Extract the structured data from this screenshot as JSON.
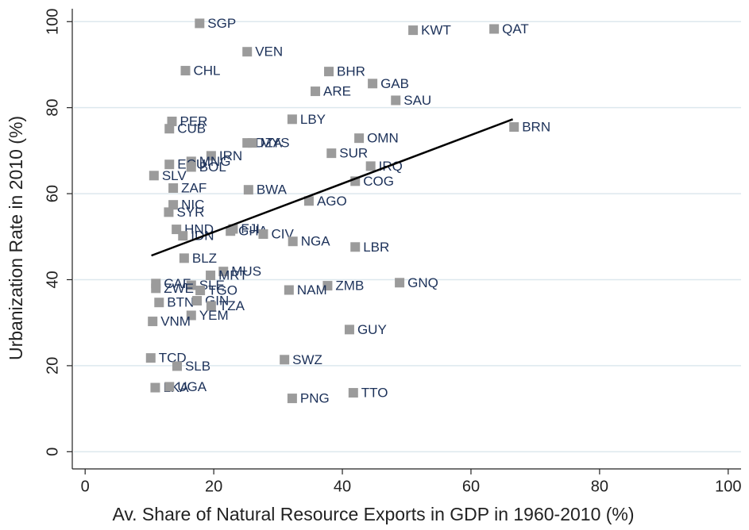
{
  "chart_data": {
    "type": "scatter",
    "x_label": "Av. Share of Natural Resource Exports in GDP in 1960-2010 (%)",
    "y_label": "Urbanization Rate in 2010 (%)",
    "xlim": [
      -2,
      102
    ],
    "ylim": [
      -4,
      103
    ],
    "xticks": [
      0,
      20,
      40,
      60,
      80,
      100
    ],
    "yticks": [
      0,
      20,
      40,
      60,
      80,
      100
    ],
    "grid": true,
    "marker_color": "#9b9b9b",
    "line_color": "#000000",
    "labels": [
      "SGP",
      "VEN",
      "CHL",
      "KWT",
      "QAT",
      "BHR",
      "GAB",
      "ARE",
      "SAU",
      "LBY",
      "BRN",
      "PER",
      "CUB",
      "OMN",
      "DZA",
      "MYS",
      "SUR",
      "IRN",
      "MNG",
      "ECU",
      "BOL",
      "IRQ",
      "SLV",
      "COG",
      "ZAF",
      "BWA",
      "AGO",
      "NIC",
      "SYR",
      "HND",
      "IDN",
      "FJI",
      "GHA",
      "CIV",
      "NGA",
      "LBR",
      "BLZ",
      "MUS",
      "MRT",
      "GNQ",
      "CAF",
      "SLE",
      "ZMB",
      "ZWE",
      "NAM",
      "TGO",
      "BTN",
      "GIN",
      "TZA",
      "YEM",
      "VNM",
      "GUY",
      "TCD",
      "SWZ",
      "SLB",
      "LKA",
      "UGA",
      "TTO",
      "PNG"
    ],
    "x": [
      17.8,
      25.2,
      15.6,
      51.0,
      63.6,
      37.9,
      44.7,
      35.8,
      48.3,
      32.2,
      66.7,
      13.5,
      13.1,
      42.6,
      25.2,
      26.0,
      38.3,
      19.6,
      16.5,
      13.1,
      16.5,
      44.4,
      10.7,
      42.0,
      13.7,
      25.4,
      34.8,
      13.7,
      13.0,
      14.2,
      15.2,
      23.0,
      22.6,
      27.7,
      32.3,
      42.0,
      15.4,
      21.5,
      19.5,
      48.9,
      11.0,
      16.5,
      37.7,
      11.0,
      31.7,
      17.9,
      11.5,
      17.4,
      19.6,
      16.5,
      10.5,
      41.1,
      10.2,
      31.0,
      14.3,
      10.9,
      13.1,
      41.7,
      32.2
    ],
    "y": [
      99.6,
      93.0,
      88.6,
      98.0,
      98.3,
      88.4,
      85.6,
      83.8,
      81.7,
      77.3,
      75.5,
      76.8,
      75.1,
      72.9,
      71.8,
      71.8,
      69.4,
      68.8,
      67.5,
      66.8,
      66.2,
      66.4,
      64.2,
      62.9,
      61.3,
      60.9,
      58.3,
      57.4,
      55.7,
      51.7,
      50.2,
      51.8,
      51.3,
      50.6,
      48.9,
      47.6,
      45.0,
      41.9,
      41.0,
      39.3,
      39.1,
      38.7,
      38.6,
      38.0,
      37.6,
      37.5,
      34.7,
      35.1,
      33.9,
      31.7,
      30.3,
      28.4,
      21.8,
      21.4,
      19.9,
      14.9,
      15.1,
      13.7,
      12.4
    ],
    "fit_line": {
      "x": [
        10.3,
        66.5
      ],
      "y": [
        45.6,
        77.3
      ]
    }
  }
}
